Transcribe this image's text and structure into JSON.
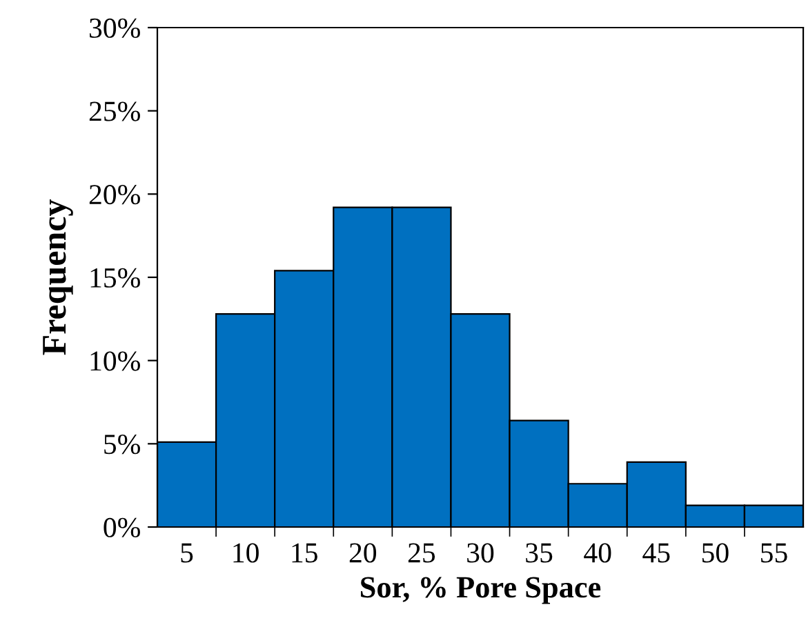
{
  "chart_data": {
    "type": "bar",
    "xlabel": "Sor, % Pore Space",
    "ylabel": "Frequency",
    "categories": [
      "5",
      "10",
      "15",
      "20",
      "25",
      "30",
      "35",
      "40",
      "45",
      "50",
      "55"
    ],
    "values": [
      5.1,
      12.8,
      15.4,
      19.2,
      19.2,
      12.8,
      6.4,
      2.6,
      3.9,
      1.3,
      1.3
    ],
    "color": "#0070c0",
    "ylim": [
      0,
      30
    ],
    "yticks": [
      {
        "value": 0,
        "label": "0%"
      },
      {
        "value": 5,
        "label": "5%"
      },
      {
        "value": 10,
        "label": "10%"
      },
      {
        "value": 15,
        "label": "15%"
      },
      {
        "value": 20,
        "label": "20%"
      },
      {
        "value": 25,
        "label": "25%"
      },
      {
        "value": 30,
        "label": "30%"
      }
    ],
    "grid": false,
    "legend": false
  }
}
